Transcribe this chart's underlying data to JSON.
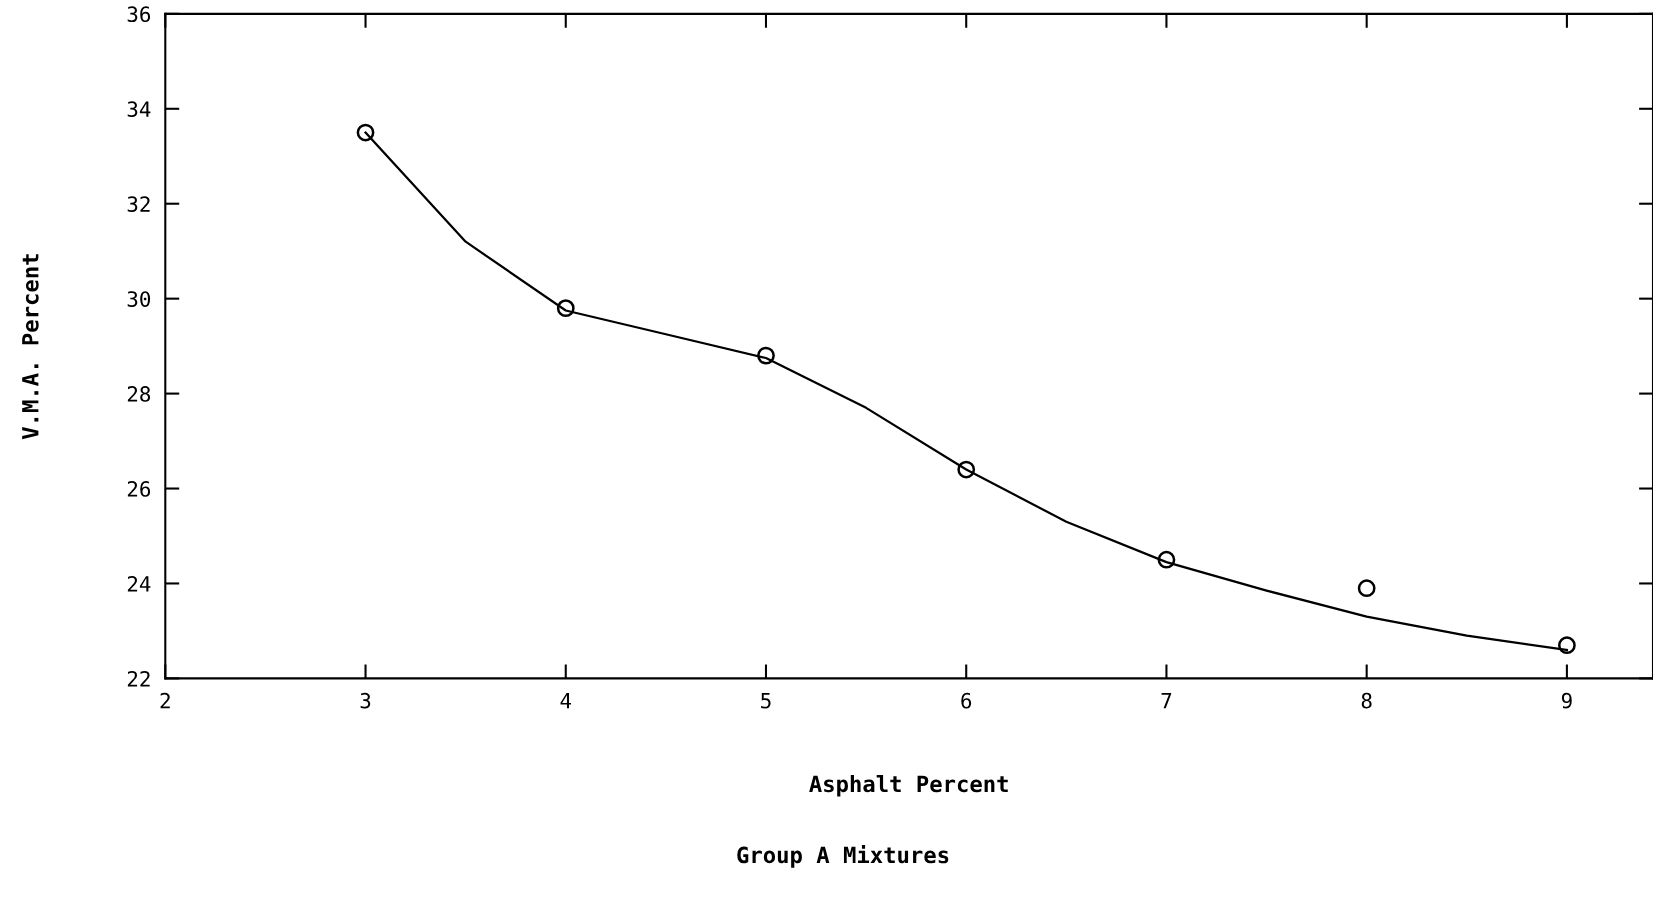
{
  "chart_data": {
    "type": "line",
    "xlabel": "Asphalt Percent",
    "ylabel": "V.M.A. Percent",
    "annotations": [
      "Group A Mixtures"
    ],
    "xlim": [
      2,
      9.43
    ],
    "ylim": [
      22,
      36
    ],
    "xticks": [
      2,
      3,
      4,
      5,
      6,
      7,
      8,
      9
    ],
    "yticks": [
      22,
      24,
      26,
      28,
      30,
      32,
      34,
      36
    ],
    "grid": false,
    "series": [
      {
        "type": "scatter",
        "marker": "circle",
        "color": "#000000",
        "x": [
          3,
          4,
          5,
          6,
          7,
          8,
          9
        ],
        "values": [
          33.5,
          29.8,
          28.8,
          26.4,
          24.5,
          23.9,
          22.7
        ]
      },
      {
        "marker": "none",
        "color": "#000000",
        "line_style": "solid",
        "x": [
          3,
          3.5,
          4,
          4.5,
          5,
          5.5,
          6,
          6.5,
          7,
          7.5,
          8,
          8.5,
          9
        ],
        "values": [
          33.5,
          31.2,
          29.75,
          29.25,
          28.75,
          27.7,
          26.4,
          25.3,
          24.45,
          23.85,
          23.3,
          22.9,
          22.6
        ]
      }
    ]
  }
}
